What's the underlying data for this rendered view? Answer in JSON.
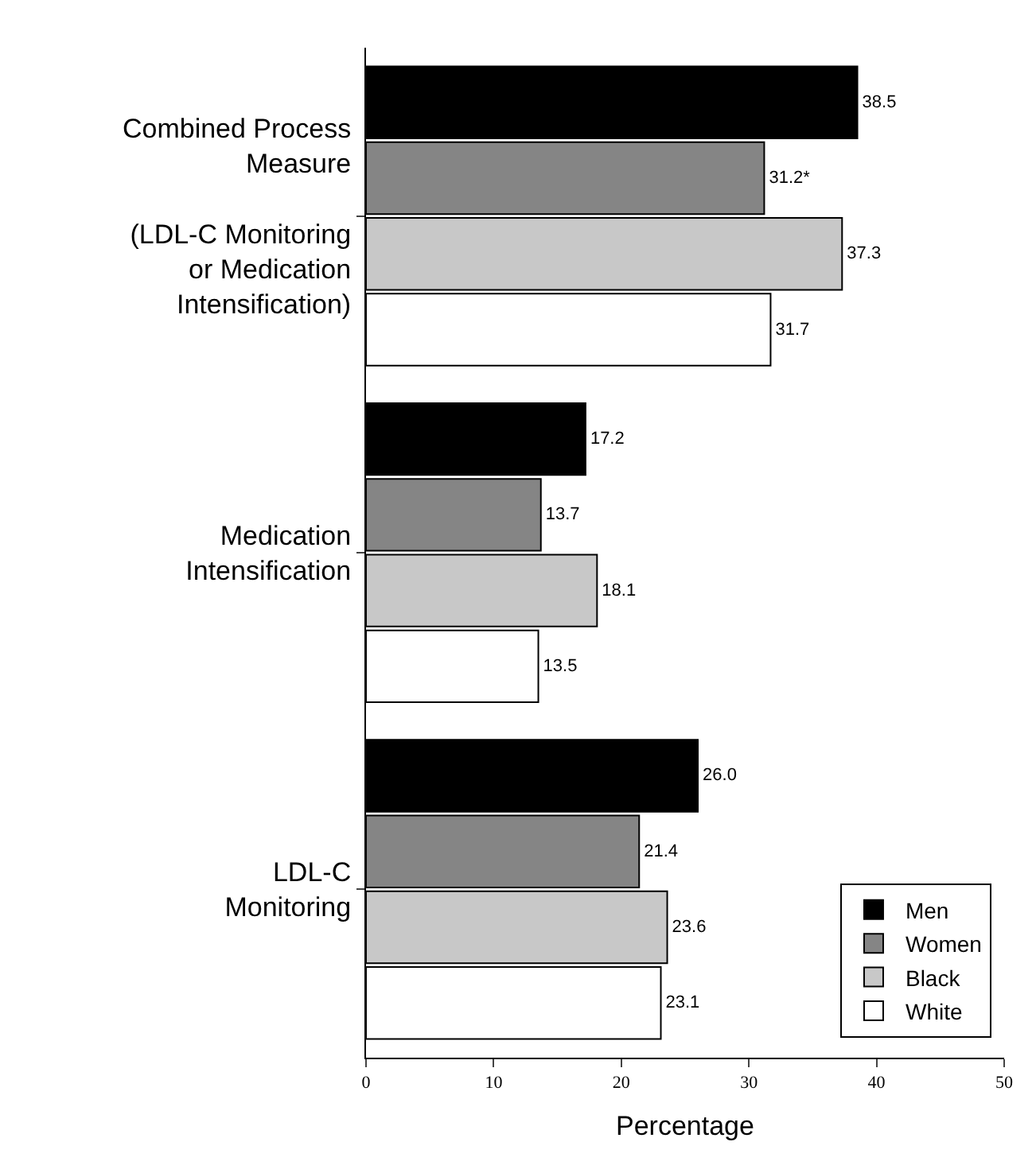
{
  "chart_data": {
    "type": "bar",
    "orientation": "horizontal",
    "xlabel": "Percentage",
    "categories": [
      "Combined Process\nMeasure\n\n(LDL-C Monitoring\nor Medication\nIntensification)",
      "Medication\nIntensification",
      "LDL-C\nMonitoring"
    ],
    "series": [
      {
        "name": "Men",
        "color": "#000000",
        "values": [
          38.5,
          17.2,
          26.0
        ],
        "value_labels": [
          "38.5",
          "17.2",
          "26.0"
        ]
      },
      {
        "name": "Women",
        "color": "#858585",
        "values": [
          31.2,
          13.7,
          21.4
        ],
        "value_labels": [
          "31.2*",
          "13.7",
          "21.4"
        ]
      },
      {
        "name": "Black",
        "color": "#c8c8c8",
        "values": [
          37.3,
          18.1,
          23.6
        ],
        "value_labels": [
          "37.3",
          "18.1",
          "23.6"
        ]
      },
      {
        "name": "White",
        "color": "#ffffff",
        "values": [
          31.7,
          13.5,
          23.1
        ],
        "value_labels": [
          "31.7",
          "13.5",
          "23.1"
        ]
      }
    ],
    "xlim": [
      0,
      50
    ],
    "xticks": [
      0,
      10,
      20,
      30,
      40,
      50
    ],
    "legend": "bottom right"
  }
}
